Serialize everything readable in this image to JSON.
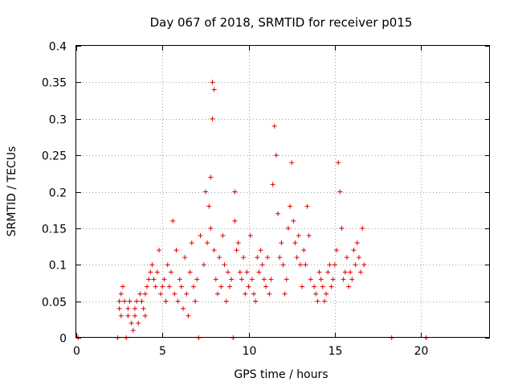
{
  "chart_data": {
    "type": "scatter",
    "title": "Day 067 of 2018, SRMTID for receiver p015",
    "xlabel": "GPS time / hours",
    "ylabel": "SRMTID / TECUs",
    "xlim": [
      0,
      24
    ],
    "ylim": [
      0,
      0.4
    ],
    "xticks": [
      0,
      5,
      10,
      15,
      20
    ],
    "yticks": [
      0,
      0.05,
      0.1,
      0.15,
      0.2,
      0.25,
      0.3,
      0.35,
      0.4
    ],
    "xtick_labels": [
      "0",
      "5",
      "10",
      "15",
      "20"
    ],
    "ytick_labels": [
      "0",
      "0.05",
      "0.1",
      "0.15",
      "0.2",
      "0.25",
      "0.3",
      "0.35",
      "0.4"
    ],
    "grid": true,
    "marker": "+",
    "color": "#e00000",
    "series": [
      {
        "name": "SRMTID",
        "x": [
          0.1,
          2.4,
          2.5,
          2.5,
          2.6,
          2.6,
          2.7,
          2.8,
          2.9,
          3.0,
          3.0,
          3.1,
          3.2,
          3.3,
          3.4,
          3.4,
          3.5,
          3.6,
          3.7,
          3.8,
          3.9,
          4.0,
          4.0,
          4.1,
          4.2,
          4.3,
          4.4,
          4.5,
          4.6,
          4.7,
          4.8,
          4.9,
          5.0,
          5.1,
          5.2,
          5.3,
          5.4,
          5.5,
          5.6,
          5.7,
          5.8,
          5.9,
          6.0,
          6.1,
          6.2,
          6.3,
          6.4,
          6.5,
          6.6,
          6.7,
          6.8,
          6.9,
          7.0,
          7.1,
          7.2,
          7.4,
          7.5,
          7.6,
          7.7,
          7.8,
          7.8,
          7.9,
          7.9,
          8.0,
          8.0,
          8.1,
          8.2,
          8.3,
          8.4,
          8.5,
          8.6,
          8.7,
          8.8,
          8.9,
          9.0,
          9.1,
          9.2,
          9.2,
          9.3,
          9.4,
          9.5,
          9.6,
          9.7,
          9.8,
          9.9,
          10.0,
          10.1,
          10.2,
          10.3,
          10.4,
          10.5,
          10.6,
          10.7,
          10.8,
          10.9,
          11.0,
          11.1,
          11.2,
          11.3,
          11.4,
          11.5,
          11.6,
          11.7,
          11.8,
          11.9,
          12.0,
          12.1,
          12.2,
          12.3,
          12.4,
          12.5,
          12.6,
          12.7,
          12.8,
          12.9,
          13.0,
          13.1,
          13.2,
          13.3,
          13.4,
          13.5,
          13.6,
          13.8,
          13.9,
          14.0,
          14.1,
          14.2,
          14.3,
          14.4,
          14.5,
          14.6,
          14.7,
          14.8,
          14.9,
          15.0,
          15.1,
          15.2,
          15.3,
          15.4,
          15.5,
          15.6,
          15.7,
          15.8,
          15.9,
          16.0,
          16.1,
          16.2,
          16.3,
          16.4,
          16.5,
          16.6,
          16.7,
          18.3,
          20.3
        ],
        "y": [
          0.0,
          0.0,
          0.05,
          0.04,
          0.06,
          0.03,
          0.07,
          0.05,
          0.0,
          0.04,
          0.03,
          0.05,
          0.02,
          0.01,
          0.04,
          0.03,
          0.05,
          0.02,
          0.06,
          0.05,
          0.04,
          0.03,
          0.06,
          0.07,
          0.08,
          0.09,
          0.1,
          0.08,
          0.07,
          0.09,
          0.12,
          0.06,
          0.07,
          0.08,
          0.05,
          0.1,
          0.07,
          0.09,
          0.16,
          0.06,
          0.12,
          0.05,
          0.08,
          0.07,
          0.04,
          0.11,
          0.06,
          0.03,
          0.09,
          0.13,
          0.07,
          0.05,
          0.08,
          0.0,
          0.14,
          0.1,
          0.2,
          0.13,
          0.18,
          0.22,
          0.15,
          0.3,
          0.35,
          0.34,
          0.12,
          0.08,
          0.06,
          0.11,
          0.07,
          0.14,
          0.1,
          0.05,
          0.09,
          0.07,
          0.08,
          0.0,
          0.2,
          0.16,
          0.12,
          0.13,
          0.09,
          0.08,
          0.11,
          0.06,
          0.09,
          0.07,
          0.14,
          0.08,
          0.06,
          0.05,
          0.11,
          0.09,
          0.12,
          0.1,
          0.08,
          0.07,
          0.11,
          0.06,
          0.08,
          0.21,
          0.29,
          0.25,
          0.17,
          0.11,
          0.13,
          0.1,
          0.06,
          0.08,
          0.15,
          0.18,
          0.24,
          0.16,
          0.13,
          0.11,
          0.14,
          0.1,
          0.07,
          0.12,
          0.1,
          0.18,
          0.14,
          0.08,
          0.07,
          0.06,
          0.05,
          0.09,
          0.08,
          0.07,
          0.05,
          0.06,
          0.09,
          0.1,
          0.07,
          0.08,
          0.1,
          0.12,
          0.24,
          0.2,
          0.15,
          0.08,
          0.09,
          0.11,
          0.07,
          0.09,
          0.08,
          0.12,
          0.1,
          0.13,
          0.11,
          0.09,
          0.15,
          0.1,
          0.0,
          0.0
        ]
      }
    ]
  }
}
